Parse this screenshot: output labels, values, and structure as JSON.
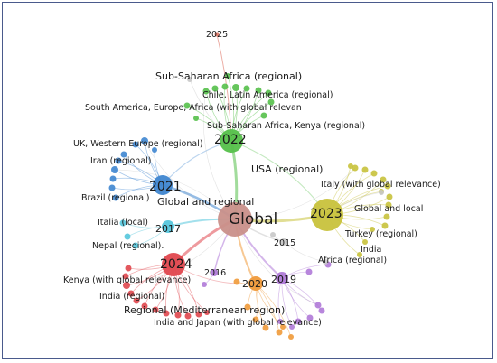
{
  "colors": {
    "center": "#c9908a",
    "y2021": "#3f86d0",
    "y2022": "#55c04a",
    "y2023": "#c8c23c",
    "y2024": "#e0474e",
    "y2017": "#55c6dc",
    "y2020": "#f09a3a",
    "y2019": "#b07ad8",
    "y2025": "#e07a6a",
    "grey": "#c8c8c8"
  },
  "hubs": [
    {
      "id": "global",
      "label": "Global",
      "color_key": "center"
    },
    {
      "id": "y2022",
      "label": "2022",
      "color_key": "y2022"
    },
    {
      "id": "y2021",
      "label": "2021",
      "color_key": "y2021"
    },
    {
      "id": "y2023",
      "label": "2023",
      "color_key": "y2023"
    },
    {
      "id": "y2024",
      "label": "2024",
      "color_key": "y2024"
    },
    {
      "id": "y2017",
      "label": "2017",
      "color_key": "y2017"
    },
    {
      "id": "y2020",
      "label": "2020",
      "color_key": "y2020"
    },
    {
      "id": "y2019",
      "label": "2019",
      "color_key": "y2019"
    },
    {
      "id": "y2016",
      "label": "2016",
      "color_key": "y2019"
    },
    {
      "id": "y2015",
      "label": "2015",
      "color_key": "grey"
    },
    {
      "id": "y2025",
      "label": "2025",
      "color_key": "y2025"
    }
  ],
  "labels": {
    "sub_saharan_regional": "Sub-Saharan Africa (regional)",
    "chile_latin_america": "Chile, Latin America (regional)",
    "south_america_europe_africa": "South America, Europe, Africa (with global relevan",
    "sub_saharan_kenya": "Sub-Saharan Africa, Kenya (regional)",
    "usa_regional": "USA (regional)",
    "uk_western_europe": "UK, Western Europe (regional)",
    "iran_regional": "Iran (regional)",
    "brazil_regional": "Brazil (regional)",
    "global_and_regional": "Global and regional",
    "italia_local": "Italia (local)",
    "nepal_regional": "Nepal (regional).",
    "italy_global_relevance": "Italy (with global relevance)",
    "global_and_local": "Global and local",
    "turkey_regional": "Turkey (regional)",
    "india": "India",
    "africa_regional": "Africa (regional)",
    "kenya_global_relevance": "Kenya (with global relevance)",
    "india_regional": "India (regional)",
    "regional_mediterranean": "Regional (Mediterranean region)",
    "india_japan_global": "India and Japan (with global relevance)"
  }
}
